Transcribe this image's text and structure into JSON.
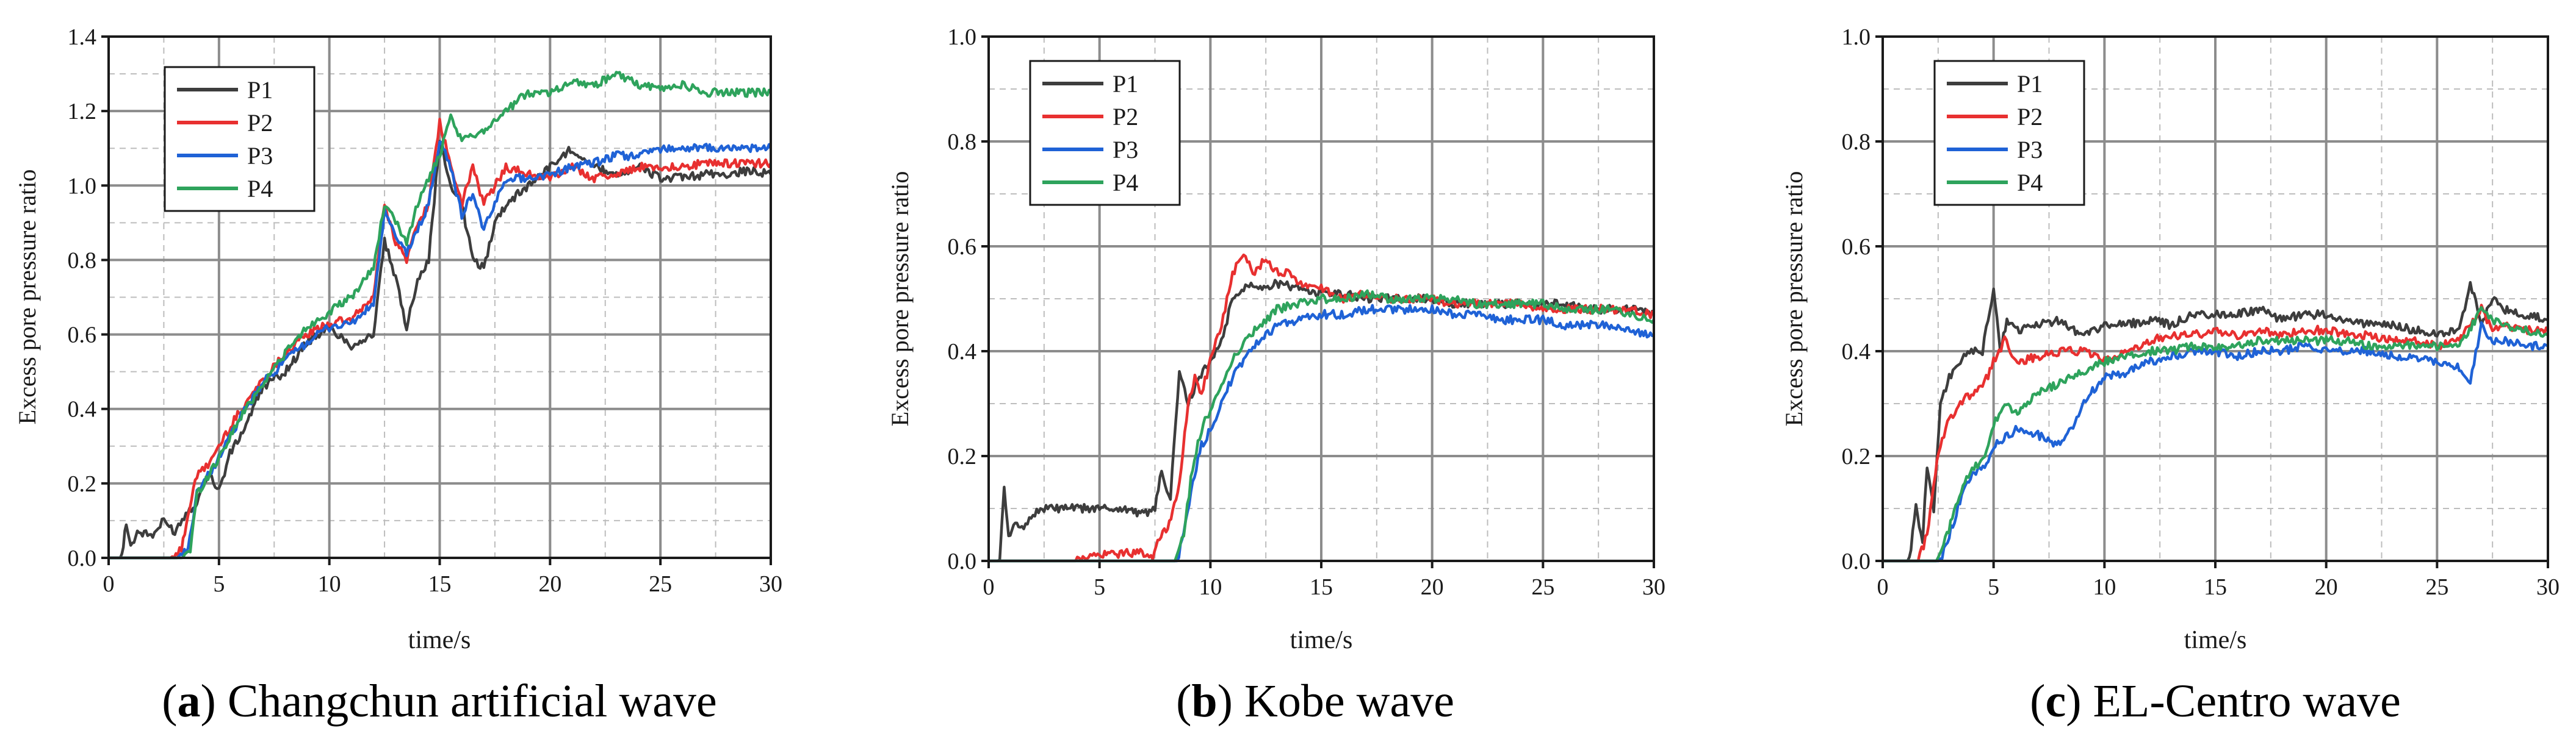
{
  "chart_data": [
    {
      "type": "line",
      "caption_letter": "a",
      "caption_text": " Changchun artificial wave",
      "xlabel": "time/s",
      "ylabel": "Excess pore pressure ratio",
      "xlim": [
        0,
        30
      ],
      "ylim": [
        0,
        1.4
      ],
      "x_ticks": [
        "0",
        "5",
        "10",
        "15",
        "20",
        "25",
        "30"
      ],
      "y_ticks": [
        "0.0",
        "0.2",
        "0.4",
        "0.6",
        "0.8",
        "1.0",
        "1.2",
        "1.4"
      ],
      "legend_position": "top-left",
      "grid": true,
      "series": [
        {
          "name": "P1",
          "color": "#3d3d3d",
          "x": [
            0,
            0.6,
            0.8,
            1.0,
            1.3,
            2.0,
            2.5,
            3.0,
            3.5,
            4.0,
            4.5,
            5.0,
            5.5,
            6,
            7,
            8,
            9,
            10,
            11,
            12,
            12.5,
            13,
            13.5,
            14,
            14.5,
            15,
            15.5,
            16,
            16.5,
            17,
            17.5,
            18,
            19,
            20,
            21,
            22,
            23,
            24,
            25,
            26,
            27,
            28,
            29,
            30
          ],
          "y": [
            0,
            0,
            0.1,
            0.03,
            0.07,
            0.06,
            0.1,
            0.07,
            0.12,
            0.15,
            0.23,
            0.18,
            0.28,
            0.33,
            0.46,
            0.5,
            0.58,
            0.62,
            0.57,
            0.6,
            0.85,
            0.75,
            0.62,
            0.75,
            0.8,
            1.12,
            1.0,
            0.95,
            0.8,
            0.78,
            0.9,
            0.95,
            1.0,
            1.05,
            1.1,
            1.05,
            1.03,
            1.05,
            1.02,
            1.02,
            1.03,
            1.03,
            1.04,
            1.03
          ]
        },
        {
          "name": "P2",
          "color": "#e83030",
          "x": [
            0,
            2.8,
            3.3,
            3.6,
            4.0,
            4.5,
            5,
            6,
            7,
            8,
            9,
            10,
            11,
            12,
            12.5,
            13,
            13.5,
            14,
            14.5,
            15,
            15.5,
            16,
            16.5,
            17,
            17.5,
            18,
            19,
            20,
            21,
            22,
            23,
            24,
            25,
            26,
            27,
            28,
            29,
            30
          ],
          "y": [
            0,
            0,
            0.02,
            0.12,
            0.22,
            0.25,
            0.3,
            0.4,
            0.48,
            0.55,
            0.6,
            0.63,
            0.64,
            0.7,
            0.95,
            0.85,
            0.8,
            0.9,
            0.95,
            1.17,
            1.05,
            0.95,
            1.05,
            0.95,
            1.0,
            1.05,
            1.03,
            1.02,
            1.05,
            1.02,
            1.03,
            1.05,
            1.05,
            1.05,
            1.06,
            1.06,
            1.06,
            1.06
          ]
        },
        {
          "name": "P3",
          "color": "#1f62d6",
          "x": [
            0,
            3.1,
            3.6,
            4.0,
            4.5,
            5,
            6,
            7,
            8,
            9,
            10,
            11,
            12,
            12.5,
            13,
            13.5,
            14,
            14.5,
            15,
            15.5,
            16,
            16.5,
            17,
            17.5,
            18,
            19,
            20,
            21,
            22,
            23,
            24,
            25,
            26,
            27,
            28,
            29,
            30
          ],
          "y": [
            0,
            0,
            0.02,
            0.18,
            0.22,
            0.27,
            0.38,
            0.47,
            0.53,
            0.58,
            0.62,
            0.63,
            0.68,
            0.93,
            0.86,
            0.82,
            0.88,
            0.95,
            1.12,
            1.05,
            0.92,
            0.98,
            0.88,
            0.95,
            1.02,
            1.02,
            1.03,
            1.05,
            1.06,
            1.08,
            1.08,
            1.1,
            1.1,
            1.1,
            1.1,
            1.1,
            1.1
          ]
        },
        {
          "name": "P4",
          "color": "#2ea35c",
          "x": [
            0,
            3.2,
            3.7,
            4.0,
            4.5,
            5,
            6,
            7,
            8,
            9,
            10,
            11,
            12,
            12.5,
            13,
            13.5,
            14,
            14.5,
            15,
            15.5,
            16,
            17,
            18,
            19,
            20,
            21,
            22,
            23,
            24,
            25,
            26,
            27,
            28,
            29,
            30
          ],
          "y": [
            0,
            0,
            0.02,
            0.17,
            0.22,
            0.27,
            0.38,
            0.47,
            0.55,
            0.62,
            0.66,
            0.7,
            0.78,
            0.95,
            0.9,
            0.85,
            0.95,
            1.02,
            1.08,
            1.18,
            1.12,
            1.15,
            1.2,
            1.25,
            1.25,
            1.28,
            1.27,
            1.3,
            1.27,
            1.26,
            1.27,
            1.25,
            1.25,
            1.25,
            1.25
          ]
        }
      ]
    },
    {
      "type": "line",
      "caption_letter": "b",
      "caption_text": " Kobe wave",
      "xlabel": "time/s",
      "ylabel": "Excess pore pressure ratio",
      "xlim": [
        0,
        30
      ],
      "ylim": [
        0,
        1.0
      ],
      "x_ticks": [
        "0",
        "5",
        "10",
        "15",
        "20",
        "25",
        "30"
      ],
      "y_ticks": [
        "0.0",
        "0.2",
        "0.4",
        "0.6",
        "0.8",
        "1.0"
      ],
      "legend_position": "top-left",
      "grid": true,
      "series": [
        {
          "name": "P1",
          "color": "#3d3d3d",
          "x": [
            0,
            0.5,
            0.7,
            0.9,
            1.2,
            1.5,
            2,
            2.5,
            3,
            4,
            5,
            6,
            7,
            7.5,
            7.8,
            8.2,
            8.6,
            9,
            9.5,
            10,
            10.5,
            11,
            11.5,
            12,
            12.5,
            13,
            14,
            15,
            16,
            17,
            18,
            19,
            20,
            21,
            22,
            23,
            24,
            25,
            26,
            27,
            28,
            29,
            30
          ],
          "y": [
            0,
            0,
            0.14,
            0.04,
            0.08,
            0.06,
            0.09,
            0.1,
            0.1,
            0.1,
            0.1,
            0.1,
            0.09,
            0.1,
            0.17,
            0.12,
            0.36,
            0.3,
            0.35,
            0.38,
            0.42,
            0.5,
            0.52,
            0.53,
            0.52,
            0.53,
            0.52,
            0.51,
            0.51,
            0.5,
            0.5,
            0.5,
            0.5,
            0.49,
            0.49,
            0.49,
            0.49,
            0.49,
            0.49,
            0.48,
            0.48,
            0.48,
            0.47
          ]
        },
        {
          "name": "P2",
          "color": "#e83030",
          "x": [
            0,
            4,
            4.5,
            5,
            6,
            7,
            7.4,
            7.7,
            8.0,
            8.3,
            8.6,
            9,
            9.3,
            9.6,
            10,
            10.5,
            11,
            11.5,
            12,
            12.5,
            13,
            13.5,
            14,
            15,
            16,
            17,
            18,
            19,
            20,
            21,
            22,
            23,
            24,
            25,
            26,
            27,
            28,
            29,
            30
          ],
          "y": [
            0,
            0,
            0.01,
            0.01,
            0.015,
            0.015,
            0.01,
            0.04,
            0.06,
            0.09,
            0.15,
            0.3,
            0.35,
            0.32,
            0.38,
            0.45,
            0.55,
            0.58,
            0.55,
            0.58,
            0.55,
            0.55,
            0.53,
            0.52,
            0.5,
            0.51,
            0.5,
            0.5,
            0.5,
            0.49,
            0.49,
            0.49,
            0.49,
            0.48,
            0.48,
            0.48,
            0.48,
            0.48,
            0.47
          ]
        },
        {
          "name": "P3",
          "color": "#1f62d6",
          "x": [
            0,
            8.5,
            8.8,
            9.2,
            9.6,
            10,
            10.5,
            11,
            11.5,
            12,
            12.5,
            13,
            14,
            15,
            16,
            17,
            18,
            19,
            20,
            21,
            22,
            23,
            24,
            25,
            26,
            27,
            28,
            29,
            30
          ],
          "y": [
            0,
            0,
            0.05,
            0.15,
            0.22,
            0.25,
            0.3,
            0.35,
            0.38,
            0.41,
            0.43,
            0.45,
            0.46,
            0.47,
            0.47,
            0.48,
            0.48,
            0.48,
            0.48,
            0.47,
            0.47,
            0.46,
            0.46,
            0.46,
            0.45,
            0.45,
            0.45,
            0.44,
            0.43
          ]
        },
        {
          "name": "P4",
          "color": "#2ea35c",
          "x": [
            0,
            8.4,
            8.8,
            9.2,
            9.6,
            10,
            10.5,
            11,
            11.5,
            12,
            12.5,
            13,
            14,
            15,
            16,
            17,
            18,
            19,
            20,
            21,
            22,
            23,
            24,
            25,
            26,
            27,
            28,
            29,
            30
          ],
          "y": [
            0,
            0,
            0.05,
            0.18,
            0.25,
            0.29,
            0.33,
            0.38,
            0.42,
            0.44,
            0.46,
            0.48,
            0.49,
            0.5,
            0.5,
            0.51,
            0.5,
            0.5,
            0.5,
            0.5,
            0.49,
            0.49,
            0.49,
            0.49,
            0.48,
            0.48,
            0.48,
            0.47,
            0.46
          ]
        }
      ]
    },
    {
      "type": "line",
      "caption_letter": "c",
      "caption_text": " EL-Centro wave",
      "xlabel": "time/s",
      "ylabel": "Excess pore pressure ratio",
      "xlim": [
        0,
        30
      ],
      "ylim": [
        0,
        1.0
      ],
      "x_ticks": [
        "0",
        "5",
        "10",
        "15",
        "20",
        "25",
        "30"
      ],
      "y_ticks": [
        "0.0",
        "0.2",
        "0.4",
        "0.6",
        "0.8",
        "1.0"
      ],
      "legend_position": "top-left",
      "grid": true,
      "series": [
        {
          "name": "P1",
          "color": "#3d3d3d",
          "x": [
            0,
            1.2,
            1.5,
            1.8,
            2.0,
            2.3,
            2.6,
            3.0,
            3.5,
            4,
            4.5,
            5,
            5.3,
            5.6,
            6,
            7,
            8,
            9,
            10,
            11,
            12,
            13,
            14,
            15,
            16,
            17,
            18,
            19,
            20,
            21,
            22,
            23,
            24,
            25,
            26,
            26.5,
            27,
            27.5,
            28,
            29,
            30
          ],
          "y": [
            0,
            0,
            0.1,
            0.04,
            0.18,
            0.1,
            0.3,
            0.35,
            0.38,
            0.4,
            0.4,
            0.52,
            0.4,
            0.46,
            0.44,
            0.45,
            0.46,
            0.43,
            0.45,
            0.45,
            0.46,
            0.45,
            0.47,
            0.47,
            0.47,
            0.48,
            0.46,
            0.47,
            0.47,
            0.46,
            0.45,
            0.45,
            0.44,
            0.43,
            0.44,
            0.53,
            0.45,
            0.5,
            0.48,
            0.47,
            0.46
          ]
        },
        {
          "name": "P2",
          "color": "#e83030",
          "x": [
            0,
            1.6,
            2.0,
            2.3,
            2.6,
            3.0,
            3.5,
            4,
            4.5,
            5,
            5.5,
            6,
            7,
            8,
            9,
            10,
            11,
            12,
            13,
            14,
            15,
            16,
            17,
            18,
            19,
            20,
            21,
            22,
            23,
            24,
            25,
            26,
            27,
            27.5,
            28,
            29,
            30
          ],
          "y": [
            0,
            0,
            0.05,
            0.15,
            0.22,
            0.27,
            0.3,
            0.32,
            0.33,
            0.38,
            0.42,
            0.38,
            0.39,
            0.4,
            0.4,
            0.38,
            0.4,
            0.42,
            0.43,
            0.43,
            0.44,
            0.43,
            0.44,
            0.43,
            0.44,
            0.44,
            0.43,
            0.43,
            0.42,
            0.42,
            0.41,
            0.42,
            0.48,
            0.44,
            0.45,
            0.44,
            0.44
          ]
        },
        {
          "name": "P3",
          "color": "#1f62d6",
          "x": [
            0,
            2.6,
            3.0,
            3.4,
            3.8,
            4.2,
            4.6,
            5,
            6,
            7,
            8,
            8.5,
            9,
            10,
            11,
            12,
            13,
            14,
            15,
            16,
            17,
            18,
            19,
            20,
            21,
            22,
            23,
            24,
            25,
            26,
            26.5,
            27,
            27.5,
            28,
            29,
            30
          ],
          "y": [
            0,
            0,
            0.05,
            0.1,
            0.15,
            0.17,
            0.18,
            0.22,
            0.25,
            0.24,
            0.22,
            0.25,
            0.3,
            0.35,
            0.36,
            0.38,
            0.39,
            0.4,
            0.4,
            0.39,
            0.4,
            0.4,
            0.41,
            0.4,
            0.4,
            0.4,
            0.39,
            0.39,
            0.38,
            0.37,
            0.34,
            0.45,
            0.42,
            0.42,
            0.41,
            0.41
          ]
        },
        {
          "name": "P4",
          "color": "#2ea35c",
          "x": [
            0,
            2.5,
            2.9,
            3.3,
            3.7,
            4.2,
            4.6,
            5,
            5.5,
            6,
            7,
            8,
            9,
            10,
            11,
            12,
            13,
            14,
            15,
            16,
            17,
            18,
            19,
            20,
            21,
            22,
            23,
            24,
            25,
            26,
            27,
            27.5,
            28,
            29,
            30
          ],
          "y": [
            0,
            0,
            0.05,
            0.1,
            0.15,
            0.18,
            0.2,
            0.26,
            0.3,
            0.28,
            0.32,
            0.34,
            0.36,
            0.38,
            0.39,
            0.4,
            0.4,
            0.41,
            0.41,
            0.41,
            0.42,
            0.42,
            0.42,
            0.42,
            0.42,
            0.41,
            0.41,
            0.41,
            0.41,
            0.41,
            0.48,
            0.46,
            0.45,
            0.44,
            0.43
          ]
        }
      ]
    }
  ]
}
